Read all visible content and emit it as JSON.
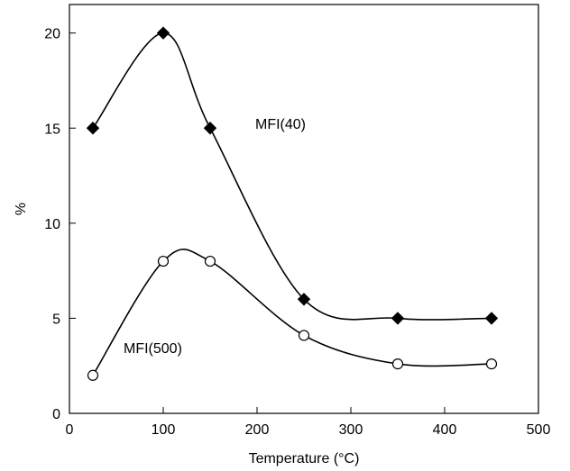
{
  "chart_data": {
    "type": "line",
    "xlabel": "Temperature (°C)",
    "ylabel": "%",
    "xlim": [
      0,
      500
    ],
    "ylim": [
      0,
      21.5
    ],
    "xticks": [
      0,
      100,
      200,
      300,
      400,
      500
    ],
    "yticks": [
      0,
      5,
      10,
      15,
      20
    ],
    "grid": false,
    "series": [
      {
        "name": "MFI(40)",
        "marker": "filled-diamond",
        "color": "#000000",
        "x": [
          25,
          100,
          150,
          250,
          350,
          450
        ],
        "y": [
          15,
          20,
          15,
          6,
          5,
          5
        ]
      },
      {
        "name": "MFI(500)",
        "marker": "open-circle",
        "color": "#000000",
        "x": [
          25,
          100,
          150,
          250,
          350,
          450
        ],
        "y": [
          2,
          8,
          8,
          4.1,
          2.6,
          2.6
        ]
      }
    ]
  }
}
